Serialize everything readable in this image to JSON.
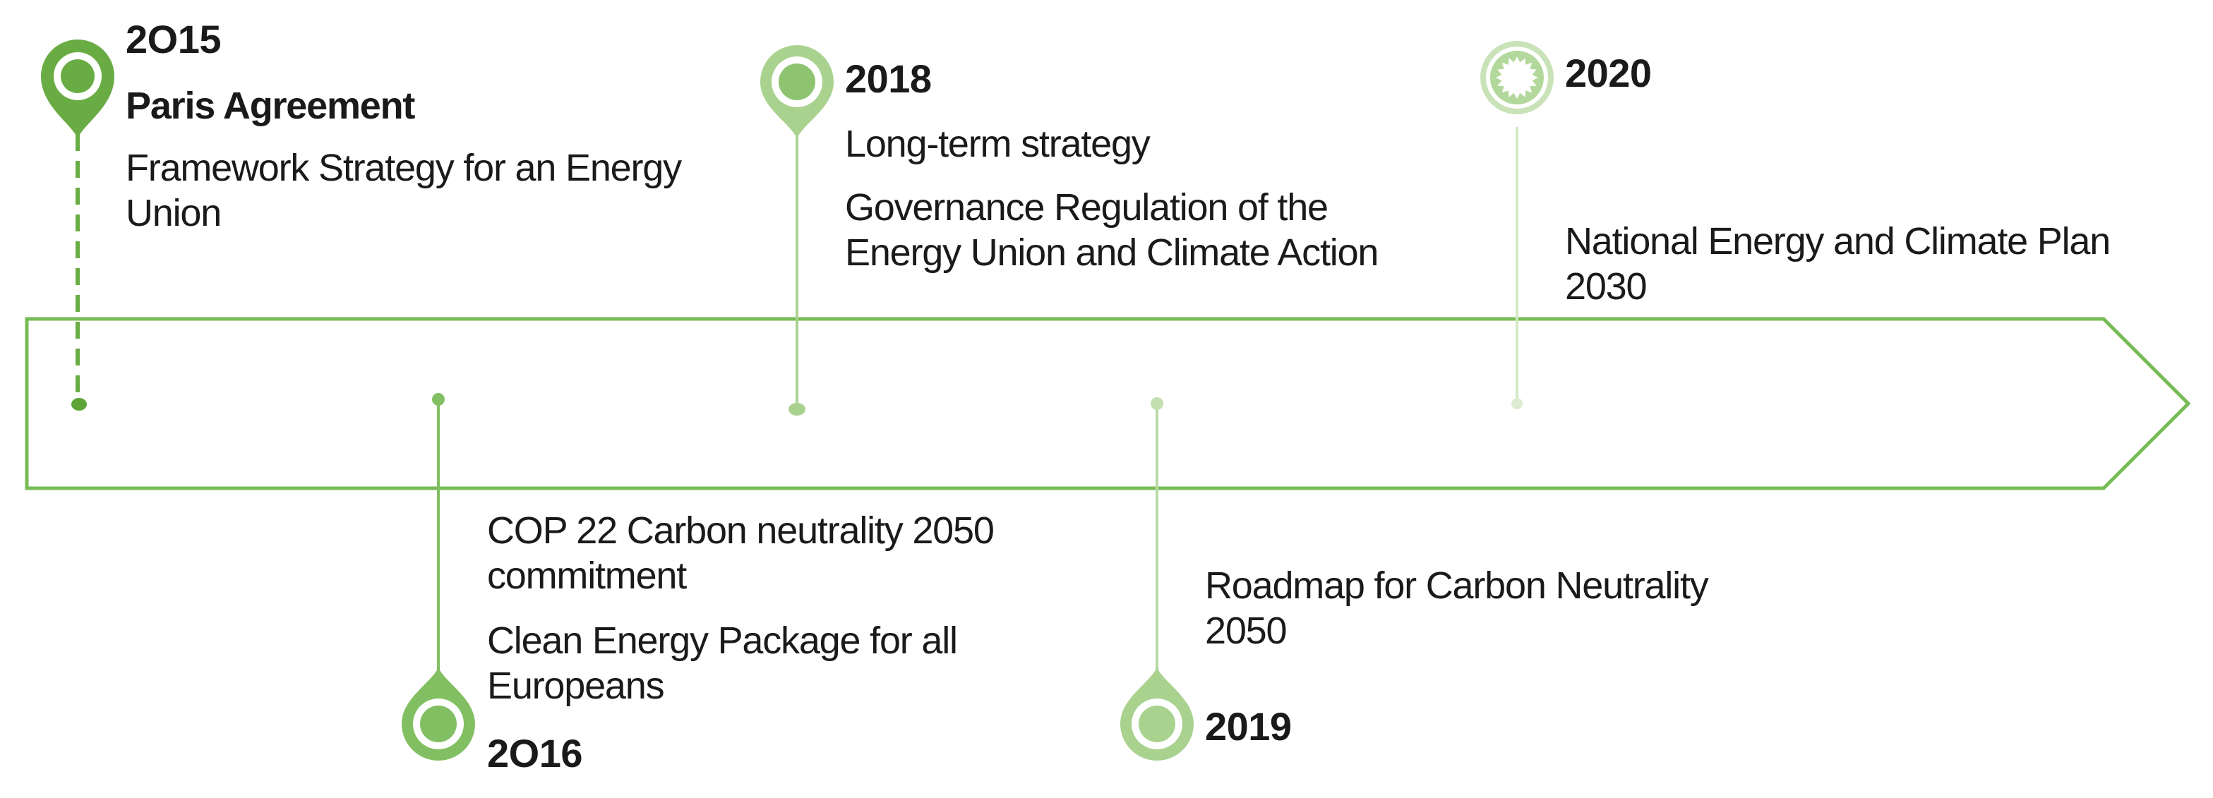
{
  "colors": {
    "arrow_stroke": "#77bb55",
    "pin_dark": "#6aac44",
    "pin_mid": "#82bf62",
    "pin_light": "#a9d28f",
    "pin_pale": "#c9e2b8",
    "text": "#1a1a1a"
  },
  "timeline": {
    "milestones": [
      {
        "year": "2O15",
        "headline": "Paris Agreement",
        "items": [
          "Framework Strategy for an Energy\nUnion"
        ],
        "icon": "map-pin-icon"
      },
      {
        "year": "2O16",
        "items": [
          "COP 22 Carbon neutrality 2050\ncommitment",
          "Clean Energy Package for all\nEuropeans"
        ],
        "icon": "map-pin-icon"
      },
      {
        "year": "2018",
        "items": [
          "Long-term strategy",
          "Governance Regulation of the\nEnergy Union and Climate Action"
        ],
        "icon": "map-pin-icon"
      },
      {
        "year": "2019",
        "items": [
          "Roadmap for Carbon Neutrality\n2050"
        ],
        "icon": "map-pin-icon"
      },
      {
        "year": "2020",
        "items": [
          "National Energy and Climate Plan\n2030"
        ],
        "icon": "sunburst-icon"
      }
    ]
  }
}
